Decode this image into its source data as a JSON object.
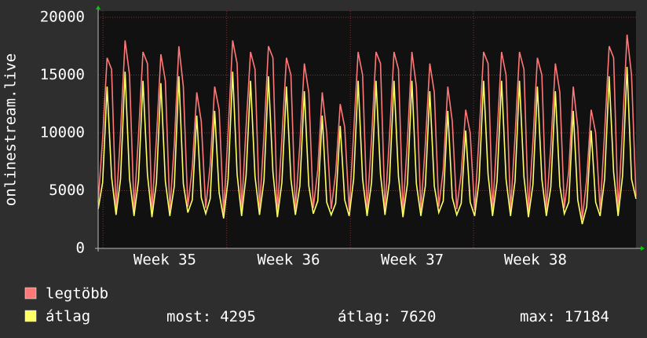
{
  "chart_data": {
    "type": "line",
    "y_label": "onlinestream.live",
    "x_labels": [
      "Week 35",
      "Week 36",
      "Week 37",
      "Week 38"
    ],
    "ylim": [
      0,
      20000
    ],
    "yticks": [
      0,
      5000,
      10000,
      15000,
      20000
    ],
    "grid": true,
    "series": [
      {
        "name": "legtöbb",
        "color": "#ff7878",
        "values": [
          4000,
          9500,
          16500,
          15500,
          3400,
          10000,
          18000,
          15000,
          3300,
          9800,
          17000,
          16000,
          3200,
          9500,
          16800,
          14500,
          3300,
          9000,
          17500,
          14000,
          3600,
          7000,
          13500,
          11000,
          3500,
          7200,
          14000,
          12000,
          3000,
          10000,
          18000,
          16000,
          3300,
          10500,
          17000,
          15500,
          3400,
          9800,
          17500,
          16500,
          3200,
          9500,
          16500,
          15000,
          3400,
          9000,
          16000,
          13500,
          3500,
          6800,
          13500,
          10000,
          3400,
          6500,
          12500,
          10500,
          3300,
          10000,
          17000,
          15000,
          3300,
          9500,
          17000,
          16000,
          3400,
          9600,
          17000,
          15500,
          3200,
          9300,
          17000,
          14000,
          3300,
          9000,
          16000,
          13500,
          3600,
          6800,
          14000,
          11000,
          3400,
          6500,
          12000,
          10000,
          3300,
          9800,
          17000,
          16000,
          3300,
          9700,
          17000,
          15000,
          3300,
          9600,
          17000,
          15500,
          3200,
          9200,
          16500,
          15000,
          3300,
          8800,
          16000,
          13500,
          3500,
          6700,
          14000,
          10500,
          2500,
          6000,
          12000,
          10000,
          3300,
          10000,
          17500,
          16500,
          3300,
          10500,
          18500,
          15000,
          4500
        ]
      },
      {
        "name": "átlag",
        "color": "#ffff66",
        "values": [
          3400,
          5700,
          14000,
          6200,
          2900,
          6000,
          15300,
          6000,
          2800,
          5900,
          14500,
          6400,
          2700,
          5700,
          14300,
          5800,
          2800,
          5400,
          14900,
          5600,
          3100,
          4200,
          11500,
          4400,
          3000,
          4300,
          11900,
          4800,
          2600,
          6000,
          15300,
          6400,
          2800,
          6300,
          14500,
          6200,
          2900,
          5900,
          14900,
          6600,
          2700,
          5700,
          14000,
          6000,
          2900,
          5400,
          13600,
          5400,
          3000,
          4100,
          11500,
          4000,
          2900,
          3900,
          10600,
          4200,
          2800,
          6000,
          14500,
          6000,
          2800,
          5700,
          14500,
          6400,
          2900,
          5800,
          14500,
          6200,
          2700,
          5600,
          14500,
          5600,
          2800,
          5400,
          13600,
          5400,
          3100,
          4100,
          11900,
          4400,
          2900,
          3900,
          10200,
          4000,
          2800,
          5900,
          14500,
          6400,
          2800,
          5800,
          14500,
          6000,
          2800,
          5800,
          14500,
          6200,
          2700,
          5500,
          14000,
          6000,
          2800,
          5300,
          13600,
          5400,
          3000,
          4000,
          11900,
          4200,
          2100,
          3600,
          10200,
          4000,
          2800,
          6000,
          14900,
          6600,
          2800,
          6300,
          15700,
          6000,
          4295
        ]
      }
    ],
    "stats": [
      {
        "label": "most:",
        "value": 4295
      },
      {
        "label": "átlag:",
        "value": 7620
      },
      {
        "label": "max:",
        "value": 17184
      }
    ]
  }
}
